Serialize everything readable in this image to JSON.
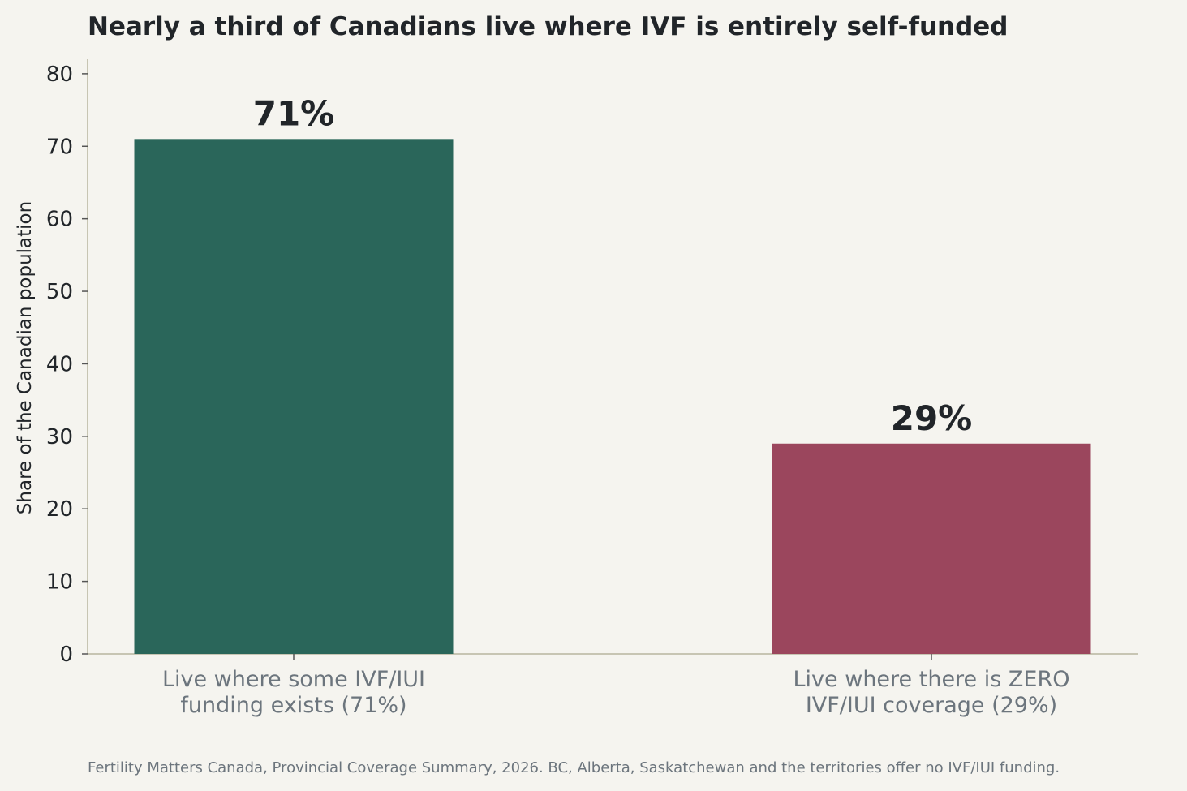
{
  "chart_data": {
    "type": "bar",
    "title": "Nearly a third of Canadians live where IVF is entirely self-funded",
    "ylabel": "Share of the Canadian population",
    "xlabel": "",
    "ylim": [
      0,
      82
    ],
    "yticks": [
      0,
      10,
      20,
      30,
      40,
      50,
      60,
      70,
      80
    ],
    "categories": [
      [
        "Live where some IVF/IUI",
        "funding exists (71%)"
      ],
      [
        "Live where there is ZERO",
        "IVF/IUI coverage (29%)"
      ]
    ],
    "values": [
      71,
      29
    ],
    "data_labels": [
      "71%",
      "29%"
    ],
    "colors": [
      "#2a665a",
      "#9b465d"
    ],
    "grid": false,
    "legend": "none"
  },
  "source": "Fertility Matters Canada, Provincial Coverage Summary, 2026. BC, Alberta, Saskatchewan and the territories offer no IVF/IUI funding.",
  "colors": {
    "background": "#f5f4ef",
    "axis": "#c7c5b3",
    "text": "#212529",
    "muted_text": "#6c757d"
  }
}
